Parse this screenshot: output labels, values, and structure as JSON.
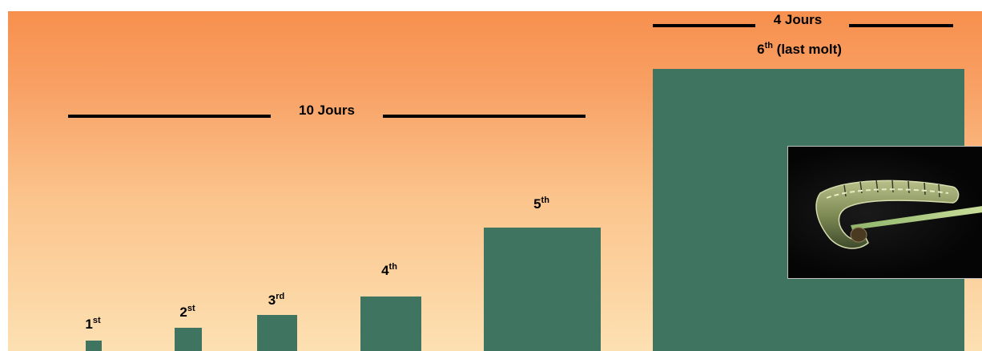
{
  "diagram": {
    "bar_color": "#3e7460",
    "background_top": "#f7904e",
    "background_bottom": "#fde0b2",
    "stages": [
      {
        "num": "1",
        "suffix": "st",
        "size": 1
      },
      {
        "num": "2",
        "suffix": "st",
        "size": 2
      },
      {
        "num": "3",
        "suffix": "rd",
        "size": 3
      },
      {
        "num": "4",
        "suffix": "th",
        "size": 4
      },
      {
        "num": "5",
        "suffix": "th",
        "size": 5
      },
      {
        "num": "6",
        "suffix": "th",
        "extra": " (last molt)",
        "size": 6
      }
    ],
    "spans": [
      {
        "label": "10 Jours"
      },
      {
        "label": "4 Jours"
      }
    ],
    "photo": {
      "subject": "caterpillar-larva"
    }
  }
}
